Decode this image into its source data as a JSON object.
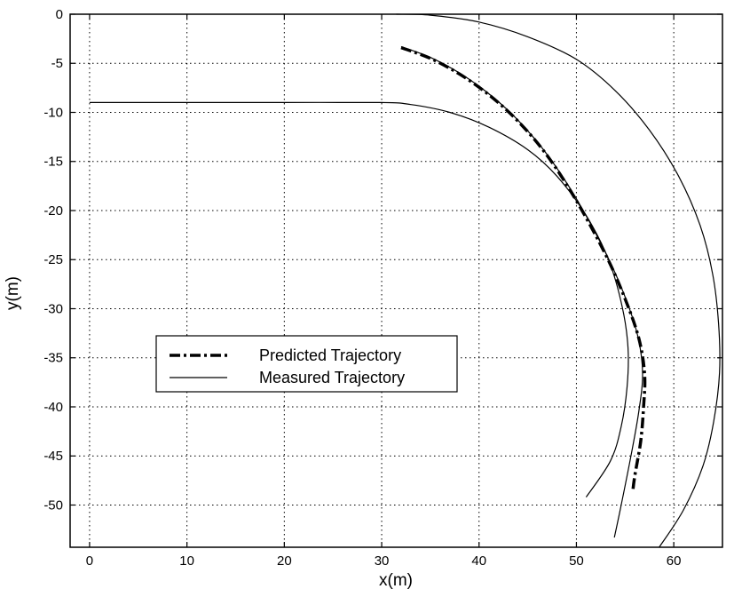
{
  "chart_data": {
    "type": "line",
    "title": "",
    "xlabel": "x(m)",
    "ylabel": "y(m)",
    "xlim": [
      -2,
      65
    ],
    "ylim": [
      -54.3,
      0
    ],
    "xticks": [
      0,
      10,
      20,
      30,
      40,
      50,
      60
    ],
    "yticks": [
      0,
      -5,
      -10,
      -15,
      -20,
      -25,
      -30,
      -35,
      -40,
      -45,
      -50
    ],
    "xtick_labels": [
      "0",
      "10",
      "20",
      "30",
      "40",
      "50",
      "60"
    ],
    "ytick_labels": [
      "0",
      "-5",
      "-10",
      "-15",
      "-20",
      "-25",
      "-30",
      "-35",
      "-40",
      "-45",
      "-50"
    ],
    "grid": true,
    "legend_position": "center-left",
    "series": [
      {
        "name": "Predicted Trajectory",
        "style": "dashdot",
        "color": "#000000",
        "points": [
          [
            32.0,
            -3.4
          ],
          [
            35.0,
            -4.5
          ],
          [
            38.0,
            -6.1
          ],
          [
            41.0,
            -8.2
          ],
          [
            44.0,
            -10.9
          ],
          [
            47.0,
            -14.4
          ],
          [
            50.0,
            -19.0
          ],
          [
            53.0,
            -24.5
          ],
          [
            55.0,
            -29.0
          ],
          [
            56.4,
            -33.0
          ],
          [
            57.0,
            -36.6
          ],
          [
            56.9,
            -40.0
          ],
          [
            56.6,
            -43.5
          ],
          [
            56.0,
            -47.0
          ],
          [
            55.8,
            -48.5
          ]
        ]
      },
      {
        "name": "Measured Trajectory",
        "style": "solid",
        "color": "#000000",
        "points": [
          [
            32.0,
            -3.3
          ],
          [
            35.0,
            -4.4
          ],
          [
            38.0,
            -6.0
          ],
          [
            41.0,
            -8.1
          ],
          [
            44.0,
            -10.8
          ],
          [
            47.0,
            -14.3
          ],
          [
            50.0,
            -18.8
          ],
          [
            53.0,
            -24.3
          ],
          [
            55.0,
            -28.8
          ],
          [
            56.3,
            -32.8
          ],
          [
            56.8,
            -36.6
          ],
          [
            56.4,
            -40.5
          ],
          [
            55.6,
            -45.0
          ],
          [
            54.6,
            -50.0
          ],
          [
            53.9,
            -53.3
          ]
        ]
      },
      {
        "name": "",
        "style": "solid",
        "color": "#000000",
        "points": [
          [
            0.0,
            -9.0
          ],
          [
            10.0,
            -9.0
          ],
          [
            20.0,
            -9.0
          ],
          [
            30.0,
            -9.0
          ],
          [
            33.0,
            -9.2
          ],
          [
            37.0,
            -10.0
          ],
          [
            41.0,
            -11.5
          ],
          [
            45.0,
            -13.8
          ],
          [
            48.0,
            -16.5
          ],
          [
            51.0,
            -20.5
          ],
          [
            53.3,
            -25.0
          ],
          [
            54.7,
            -29.8
          ],
          [
            55.3,
            -34.0
          ],
          [
            55.2,
            -38.0
          ],
          [
            54.6,
            -42.0
          ],
          [
            53.5,
            -45.5
          ],
          [
            51.0,
            -49.2
          ]
        ]
      },
      {
        "name": "",
        "style": "solid",
        "color": "#000000",
        "points": [
          [
            31.5,
            0.0
          ],
          [
            35.0,
            -0.1
          ],
          [
            40.0,
            -0.8
          ],
          [
            45.0,
            -2.3
          ],
          [
            50.0,
            -4.6
          ],
          [
            54.0,
            -7.8
          ],
          [
            57.5,
            -11.8
          ],
          [
            60.5,
            -16.5
          ],
          [
            62.7,
            -21.5
          ],
          [
            64.0,
            -26.5
          ],
          [
            64.6,
            -31.5
          ],
          [
            64.7,
            -36.5
          ],
          [
            64.1,
            -41.5
          ],
          [
            63.0,
            -46.0
          ],
          [
            61.0,
            -50.5
          ],
          [
            58.5,
            -54.3
          ]
        ]
      }
    ],
    "legend": {
      "entries": [
        "Predicted Trajectory",
        "Measured Trajectory"
      ]
    }
  }
}
